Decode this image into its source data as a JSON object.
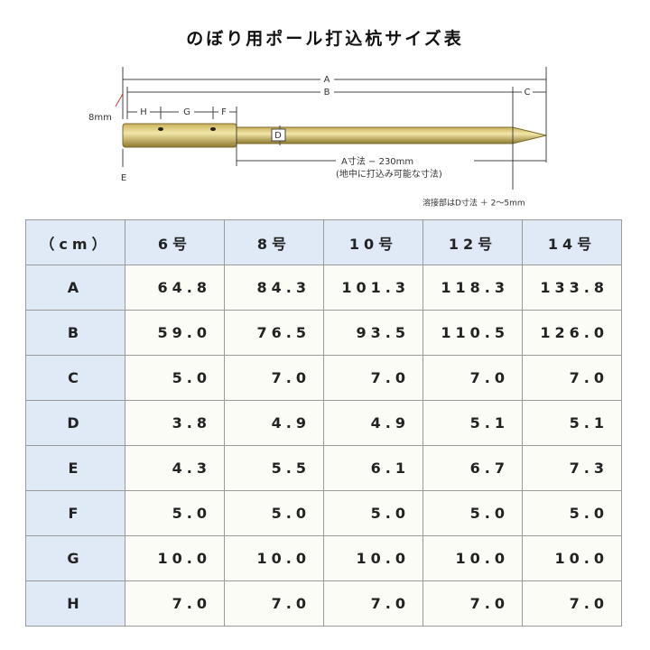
{
  "title": "のぼり用ポール打込杭サイズ表",
  "diagram": {
    "a": "A",
    "b": "B",
    "c": "C",
    "h": "H",
    "g": "G",
    "f": "F",
    "d": "D",
    "e": "E",
    "thickness": "8mm",
    "depth_line1": "A寸法 − 230mm",
    "depth_line2": "(地中に打込み可能な寸法)",
    "weld_note": "溶接部はD寸法 ＋ 2～5mm"
  },
  "table": {
    "header": [
      "（cm）",
      "6号",
      "8号",
      "10号",
      "12号",
      "14号"
    ],
    "rows": [
      [
        "A",
        "64.8",
        "84.3",
        "101.3",
        "118.3",
        "133.8"
      ],
      [
        "B",
        "59.0",
        "76.5",
        "93.5",
        "110.5",
        "126.0"
      ],
      [
        "C",
        "5.0",
        "7.0",
        "7.0",
        "7.0",
        "7.0"
      ],
      [
        "D",
        "3.8",
        "4.9",
        "4.9",
        "5.1",
        "5.1"
      ],
      [
        "E",
        "4.3",
        "5.5",
        "6.1",
        "6.7",
        "7.3"
      ],
      [
        "F",
        "5.0",
        "5.0",
        "5.0",
        "5.0",
        "5.0"
      ],
      [
        "G",
        "10.0",
        "10.0",
        "10.0",
        "10.0",
        "10.0"
      ],
      [
        "H",
        "7.0",
        "7.0",
        "7.0",
        "7.0",
        "7.0"
      ]
    ]
  }
}
